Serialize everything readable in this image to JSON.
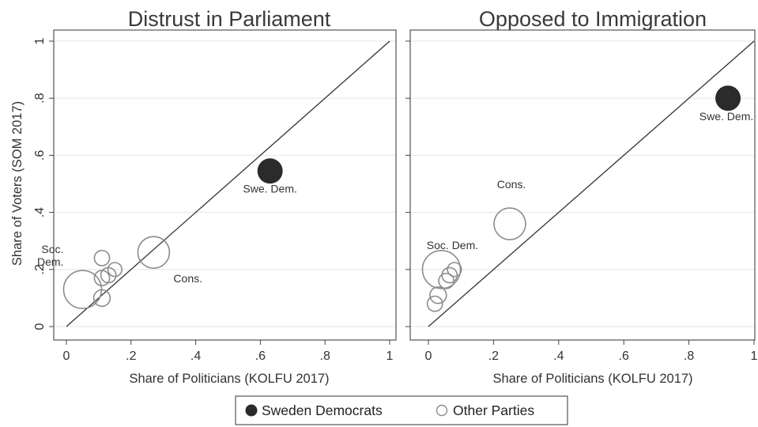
{
  "chart_data": [
    {
      "type": "scatter",
      "title": "Distrust in Parliament",
      "xlabel": "Share of Politicians (KOLFU 2017)",
      "ylabel": "Share of Voters (SOM 2017)",
      "xlim": [
        0,
        1
      ],
      "ylim": [
        0,
        1
      ],
      "x_ticks": [
        "0",
        ".2",
        ".4",
        ".6",
        ".8",
        "1"
      ],
      "y_ticks": [
        "0",
        ".2",
        ".4",
        ".6",
        ".8",
        "1"
      ],
      "grid": true,
      "reference_line": "y = x",
      "series": [
        {
          "name": "Sweden Democrats",
          "points": [
            {
              "x": 0.63,
              "y": 0.545,
              "size": 1.0,
              "label": "Swe. Dem."
            }
          ]
        },
        {
          "name": "Other Parties",
          "points": [
            {
              "x": 0.05,
              "y": 0.13,
              "size": 1.5,
              "label": "Soc.\nDem."
            },
            {
              "x": 0.27,
              "y": 0.26,
              "size": 1.25,
              "label": "Cons."
            },
            {
              "x": 0.11,
              "y": 0.24,
              "size": 0.6,
              "label": ""
            },
            {
              "x": 0.11,
              "y": 0.17,
              "size": 0.6,
              "label": ""
            },
            {
              "x": 0.13,
              "y": 0.18,
              "size": 0.6,
              "label": ""
            },
            {
              "x": 0.15,
              "y": 0.2,
              "size": 0.55,
              "label": ""
            },
            {
              "x": 0.11,
              "y": 0.1,
              "size": 0.65,
              "label": ""
            }
          ]
        }
      ]
    },
    {
      "type": "scatter",
      "title": "Opposed to Immigration",
      "xlabel": "Share of Politicians (KOLFU 2017)",
      "xlim": [
        0,
        1
      ],
      "ylim": [
        0,
        1
      ],
      "x_ticks": [
        "0",
        ".2",
        ".4",
        ".6",
        ".8",
        "1"
      ],
      "grid": true,
      "reference_line": "y = x",
      "series": [
        {
          "name": "Sweden Democrats",
          "points": [
            {
              "x": 0.92,
              "y": 0.8,
              "size": 1.0,
              "label": "Swe. Dem."
            }
          ]
        },
        {
          "name": "Other Parties",
          "points": [
            {
              "x": 0.04,
              "y": 0.2,
              "size": 1.5,
              "label": "Soc. Dem."
            },
            {
              "x": 0.25,
              "y": 0.36,
              "size": 1.25,
              "label": "Cons."
            },
            {
              "x": 0.055,
              "y": 0.16,
              "size": 0.6,
              "label": ""
            },
            {
              "x": 0.065,
              "y": 0.18,
              "size": 0.6,
              "label": ""
            },
            {
              "x": 0.08,
              "y": 0.2,
              "size": 0.55,
              "label": ""
            },
            {
              "x": 0.03,
              "y": 0.11,
              "size": 0.65,
              "label": ""
            },
            {
              "x": 0.02,
              "y": 0.08,
              "size": 0.6,
              "label": ""
            }
          ]
        }
      ]
    }
  ],
  "legend": {
    "placement": "bottom",
    "items": [
      {
        "label": "Sweden Democrats",
        "marker": "filled"
      },
      {
        "label": "Other Parties",
        "marker": "hollow"
      }
    ]
  },
  "colors": {
    "filled": "#2b2b2b",
    "hollow_stroke": "#8c8c8c",
    "axis": "#444444",
    "grid": "#e6e6e6",
    "line": "#333333"
  }
}
